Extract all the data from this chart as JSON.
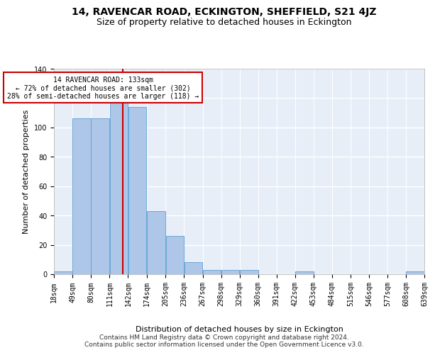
{
  "title": "14, RAVENCAR ROAD, ECKINGTON, SHEFFIELD, S21 4JZ",
  "subtitle": "Size of property relative to detached houses in Eckington",
  "xlabel": "Distribution of detached houses by size in Eckington",
  "ylabel": "Number of detached properties",
  "bin_edges": [
    18,
    49,
    80,
    111,
    142,
    174,
    205,
    236,
    267,
    298,
    329,
    360,
    391,
    422,
    453,
    484,
    515,
    546,
    577,
    608,
    639
  ],
  "bar_heights": [
    2,
    106,
    106,
    117,
    114,
    43,
    26,
    8,
    3,
    3,
    3,
    0,
    0,
    2,
    0,
    0,
    0,
    0,
    0,
    2
  ],
  "bar_color": "#aec6e8",
  "bar_edge_color": "#5a9fd4",
  "vline_x": 133,
  "vline_color": "#cc0000",
  "annotation_text": "14 RAVENCAR ROAD: 133sqm\n← 72% of detached houses are smaller (302)\n28% of semi-detached houses are larger (118) →",
  "annotation_box_color": "#ffffff",
  "annotation_box_edge": "#cc0000",
  "ylim": [
    0,
    140
  ],
  "yticks": [
    0,
    20,
    40,
    60,
    80,
    100,
    120,
    140
  ],
  "footer": "Contains HM Land Registry data © Crown copyright and database right 2024.\nContains public sector information licensed under the Open Government Licence v3.0.",
  "background_color": "#e8eef8",
  "grid_color": "#ffffff",
  "title_fontsize": 10,
  "subtitle_fontsize": 9,
  "label_fontsize": 8,
  "tick_fontsize": 7,
  "footer_fontsize": 6.5
}
